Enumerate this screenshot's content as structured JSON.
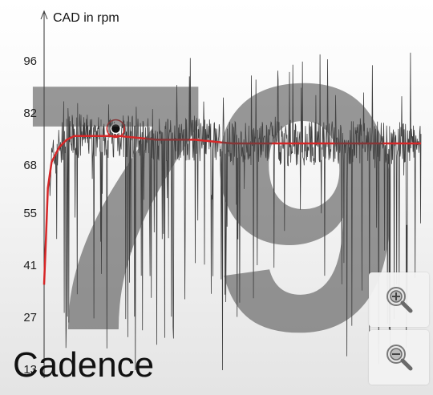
{
  "chart": {
    "big_value": "79",
    "metric_label": "Cadence",
    "y_axis_title": "CAD in rpm",
    "y_ticks": [
      "96",
      "82",
      "68",
      "55",
      "41",
      "27",
      "13"
    ],
    "colors": {
      "raw_series": "#2a2a2a",
      "avg_series": "#d62728",
      "big_value": "#555555",
      "marker": "#111111"
    },
    "icons": {
      "zoom_in": "zoom-in-icon",
      "zoom_out": "zoom-out-icon"
    }
  },
  "chart_data": {
    "type": "line",
    "ylabel": "CAD in rpm",
    "ylim": [
      13,
      102
    ],
    "yticks": [
      13,
      27,
      41,
      55,
      68,
      82,
      96
    ],
    "series": [
      {
        "values_description": "raw cadence",
        "x": [
          0,
          1,
          2,
          3,
          4,
          5,
          6,
          8,
          10,
          15,
          20,
          30,
          40,
          50,
          60,
          70,
          80,
          90,
          100
        ],
        "y": [
          36,
          60,
          68,
          72,
          74,
          76,
          77,
          78,
          78,
          77,
          76,
          75,
          75,
          74,
          74,
          74,
          74,
          74,
          74
        ]
      },
      {
        "x": [
          0,
          1,
          2,
          3,
          4,
          5,
          6,
          8,
          10,
          15,
          20,
          30,
          40,
          50,
          60,
          70,
          80,
          90,
          100
        ],
        "y": [
          36,
          62,
          69,
          71,
          73,
          74,
          75,
          76,
          76,
          76,
          76,
          75,
          75,
          74,
          74,
          74,
          74,
          74,
          74
        ]
      }
    ],
    "marker": {
      "x": 19,
      "y": 78
    }
  }
}
